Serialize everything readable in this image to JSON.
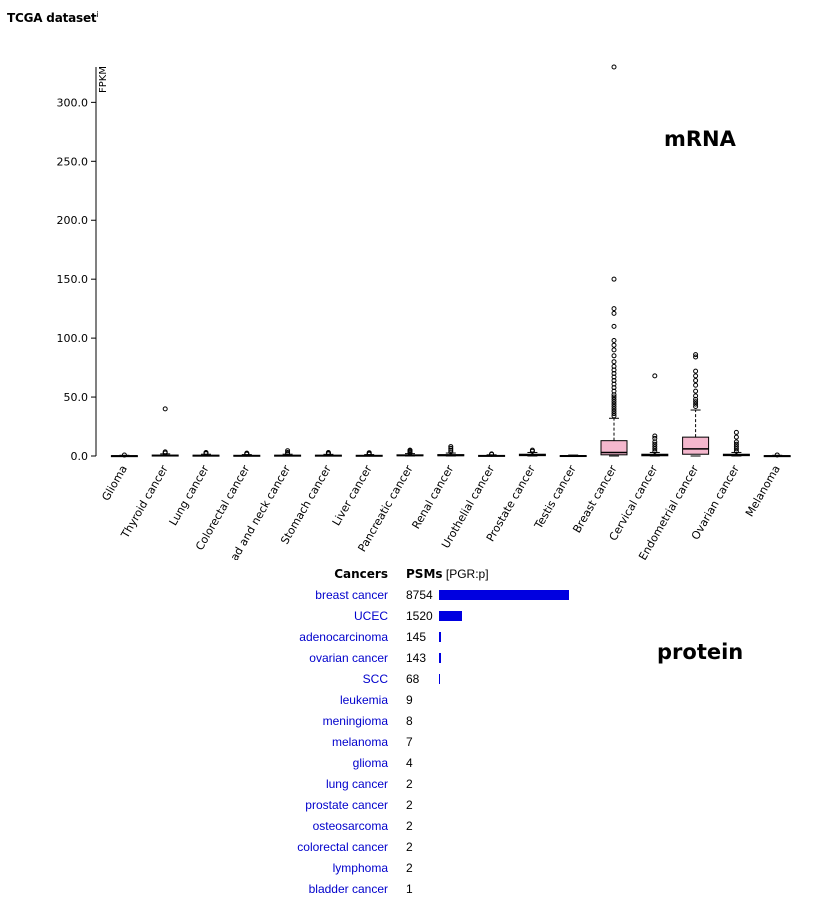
{
  "header": {
    "title": "TCGA dataset",
    "info_mark": "i"
  },
  "labels": {
    "mrna": "mRNA",
    "protein": "protein"
  },
  "chart_data": [
    {
      "type": "box",
      "ylabel": "FPKM",
      "ylim": [
        0,
        330
      ],
      "yticks": [
        "0.0",
        "50.0",
        "100.0",
        "150.0",
        "200.0",
        "250.0",
        "300.0"
      ],
      "ytick_values": [
        0,
        50,
        100,
        150,
        200,
        250,
        300
      ],
      "box_color": "#f4b7cd",
      "categories": [
        "Glioma",
        "Thyroid cancer",
        "Lung cancer",
        "Colorectal cancer",
        "Head and neck cancer",
        "Stomach cancer",
        "Liver cancer",
        "Pancreatic cancer",
        "Renal cancer",
        "Urothelial cancer",
        "Prostate cancer",
        "Testis cancer",
        "Breast cancer",
        "Cervical cancer",
        "Endometrial cancer",
        "Ovarian cancer",
        "Melanoma"
      ],
      "boxes": [
        {
          "min": 0,
          "q1": 0,
          "median": 0.1,
          "q3": 0.3,
          "max": 0.6,
          "outliers": [
            0.8
          ]
        },
        {
          "min": 0,
          "q1": 0.1,
          "median": 0.3,
          "q3": 0.8,
          "max": 1.8,
          "outliers": [
            2.5,
            3.5,
            40
          ]
        },
        {
          "min": 0,
          "q1": 0.1,
          "median": 0.3,
          "q3": 0.7,
          "max": 1.5,
          "outliers": [
            2,
            2.5,
            3
          ]
        },
        {
          "min": 0,
          "q1": 0.1,
          "median": 0.2,
          "q3": 0.6,
          "max": 1.2,
          "outliers": [
            1.6,
            2,
            2.4
          ]
        },
        {
          "min": 0,
          "q1": 0.1,
          "median": 0.3,
          "q3": 0.7,
          "max": 1.5,
          "outliers": [
            2,
            3,
            4.5
          ]
        },
        {
          "min": 0,
          "q1": 0.1,
          "median": 0.3,
          "q3": 0.7,
          "max": 1.4,
          "outliers": [
            1.8,
            2.4,
            3
          ]
        },
        {
          "min": 0,
          "q1": 0.1,
          "median": 0.2,
          "q3": 0.6,
          "max": 1.2,
          "outliers": [
            1.6,
            2.2,
            2.8
          ]
        },
        {
          "min": 0,
          "q1": 0.2,
          "median": 0.5,
          "q3": 1,
          "max": 2,
          "outliers": [
            2.8,
            3.6,
            4.5,
            5
          ]
        },
        {
          "min": 0,
          "q1": 0.2,
          "median": 0.5,
          "q3": 1.2,
          "max": 2.5,
          "outliers": [
            3.5,
            5,
            6.5,
            8
          ]
        },
        {
          "min": 0,
          "q1": 0.1,
          "median": 0.2,
          "q3": 0.5,
          "max": 1,
          "outliers": [
            1.4,
            1.8
          ]
        },
        {
          "min": 0,
          "q1": 0.3,
          "median": 0.8,
          "q3": 1.5,
          "max": 3,
          "outliers": [
            4,
            5
          ]
        },
        {
          "min": 0,
          "q1": 0.1,
          "median": 0.2,
          "q3": 0.4,
          "max": 0.8,
          "outliers": []
        },
        {
          "min": 0,
          "q1": 1,
          "median": 3,
          "q3": 13,
          "max": 32,
          "outliers": [
            34,
            36,
            38,
            40,
            42,
            44,
            46,
            48,
            50,
            52,
            55,
            58,
            61,
            64,
            67,
            70,
            73,
            76,
            80,
            85,
            90,
            94,
            98,
            110,
            121,
            125,
            150,
            330
          ]
        },
        {
          "min": 0,
          "q1": 0.2,
          "median": 0.6,
          "q3": 1.5,
          "max": 3,
          "outliers": [
            4,
            6,
            8,
            10,
            12,
            15,
            17,
            68
          ]
        },
        {
          "min": 0,
          "q1": 1.5,
          "median": 6,
          "q3": 16,
          "max": 39,
          "outliers": [
            42,
            44,
            46,
            48,
            51,
            55,
            60,
            64,
            68,
            72,
            84,
            86
          ]
        },
        {
          "min": 0,
          "q1": 0.3,
          "median": 0.8,
          "q3": 1.5,
          "max": 3,
          "outliers": [
            4,
            6,
            8,
            10,
            12,
            16,
            20
          ]
        },
        {
          "min": 0,
          "q1": 0,
          "median": 0.1,
          "q3": 0.3,
          "max": 0.6,
          "outliers": [
            0.9
          ]
        }
      ]
    },
    {
      "type": "bar",
      "orientation": "horizontal",
      "header": {
        "category_label": "Cancers",
        "value_label": "PSMs",
        "value_note": "[PGR:p]"
      },
      "max_value": 8754,
      "bar_color": "#0000e0",
      "link_color": "#0000cc",
      "rows": [
        {
          "name": "breast cancer",
          "value": 8754
        },
        {
          "name": "UCEC",
          "value": 1520
        },
        {
          "name": "adenocarcinoma",
          "value": 145
        },
        {
          "name": "ovarian cancer",
          "value": 143
        },
        {
          "name": "SCC",
          "value": 68
        },
        {
          "name": "leukemia",
          "value": 9
        },
        {
          "name": "meningioma",
          "value": 8
        },
        {
          "name": "melanoma",
          "value": 7
        },
        {
          "name": "glioma",
          "value": 4
        },
        {
          "name": "lung cancer",
          "value": 2
        },
        {
          "name": "prostate cancer",
          "value": 2
        },
        {
          "name": "osteosarcoma",
          "value": 2
        },
        {
          "name": "colorectal cancer",
          "value": 2
        },
        {
          "name": "lymphoma",
          "value": 2
        },
        {
          "name": "bladder cancer",
          "value": 1
        }
      ]
    }
  ]
}
